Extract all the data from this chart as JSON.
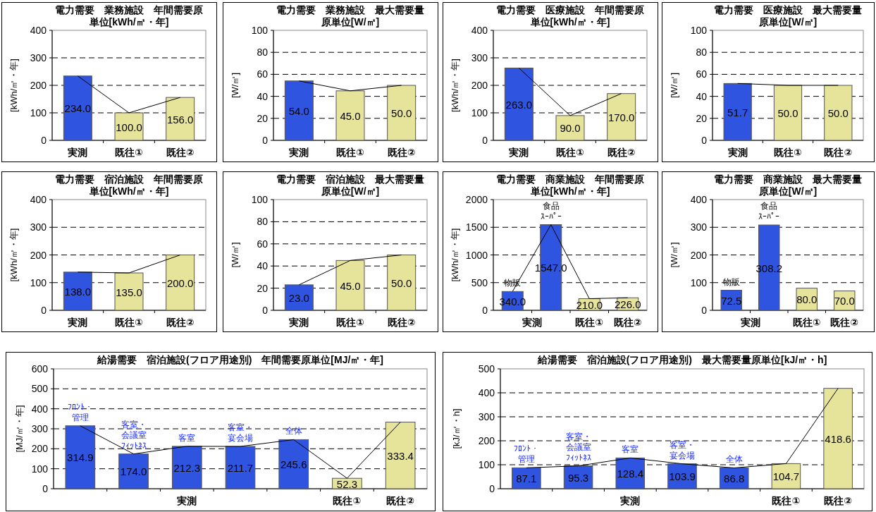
{
  "chart_data": [
    {
      "type": "bar",
      "title": "電力需要　業務施設　年間需要原単位[kWh/㎡・年]",
      "ylabel": "[kWh/㎡・年]",
      "categories": [
        "実測",
        "既往①",
        "既往②"
      ],
      "ylim": [
        0,
        400
      ],
      "yticks": [
        0,
        100,
        200,
        300,
        400
      ],
      "grid": "y",
      "series": [
        {
          "type": "bar",
          "colors": [
            "#2f55e0",
            "#e6e39a",
            "#e6e39a"
          ],
          "values": [
            234.0,
            100.0,
            156.0
          ],
          "value_labels": [
            "234.0",
            "100.0",
            "156.0"
          ]
        },
        {
          "type": "line",
          "color": "#000000",
          "values": [
            234.0,
            100.0,
            156.0
          ]
        }
      ]
    },
    {
      "type": "bar",
      "title": "電力需要　業務施設　最大需要量原単位[W/㎡]",
      "ylabel": "[W/㎡]",
      "categories": [
        "実測",
        "既往①",
        "既往②"
      ],
      "ylim": [
        0,
        100
      ],
      "yticks": [
        0,
        20,
        40,
        60,
        80,
        100
      ],
      "grid": "y",
      "series": [
        {
          "type": "bar",
          "colors": [
            "#2f55e0",
            "#e6e39a",
            "#e6e39a"
          ],
          "values": [
            54.0,
            45.0,
            50.0
          ],
          "value_labels": [
            "54.0",
            "45.0",
            "50.0"
          ]
        },
        {
          "type": "line",
          "color": "#000000",
          "values": [
            54.0,
            45.0,
            50.0
          ]
        }
      ]
    },
    {
      "type": "bar",
      "title": "電力需要　医療施設　年間需要原単位[kWh/㎡・年]",
      "ylabel": "[kWh/㎡・年]",
      "categories": [
        "実測",
        "既往①",
        "既往②"
      ],
      "ylim": [
        0,
        400
      ],
      "yticks": [
        0,
        100,
        200,
        300,
        400
      ],
      "grid": "y",
      "series": [
        {
          "type": "bar",
          "colors": [
            "#2f55e0",
            "#e6e39a",
            "#e6e39a"
          ],
          "values": [
            263.0,
            90.0,
            170.0
          ],
          "value_labels": [
            "263.0",
            "90.0",
            "170.0"
          ]
        },
        {
          "type": "line",
          "color": "#000000",
          "values": [
            263.0,
            90.0,
            170.0
          ]
        }
      ]
    },
    {
      "type": "bar",
      "title": "電力需要　医療施設　最大需要量原単位[W/㎡]",
      "ylabel": "[W/㎡]",
      "categories": [
        "実測",
        "既往①",
        "既往②"
      ],
      "ylim": [
        0,
        100
      ],
      "yticks": [
        0,
        20,
        40,
        60,
        80,
        100
      ],
      "grid": "y",
      "series": [
        {
          "type": "bar",
          "colors": [
            "#2f55e0",
            "#e6e39a",
            "#e6e39a"
          ],
          "values": [
            51.7,
            50.0,
            50.0
          ],
          "value_labels": [
            "51.7",
            "50.0",
            "50.0"
          ]
        },
        {
          "type": "line",
          "color": "#000000",
          "values": [
            51.7,
            50.0,
            50.0
          ]
        }
      ]
    },
    {
      "type": "bar",
      "title": "電力需要　宿泊施設　年間需要原単位[kWh/㎡・年]",
      "ylabel": "[kWh/㎡・年]",
      "categories": [
        "実測",
        "既往①",
        "既往②"
      ],
      "ylim": [
        0,
        400
      ],
      "yticks": [
        0,
        100,
        200,
        300,
        400
      ],
      "grid": "y",
      "series": [
        {
          "type": "bar",
          "colors": [
            "#2f55e0",
            "#e6e39a",
            "#e6e39a"
          ],
          "values": [
            138.0,
            135.0,
            200.0
          ],
          "value_labels": [
            "138.0",
            "135.0",
            "200.0"
          ]
        },
        {
          "type": "line",
          "color": "#000000",
          "values": [
            138.0,
            135.0,
            200.0
          ]
        }
      ]
    },
    {
      "type": "bar",
      "title": "電力需要　宿泊施設　最大需要量原単位[W/㎡]",
      "ylabel": "[W/㎡]",
      "categories": [
        "実測",
        "既往①",
        "既往②"
      ],
      "ylim": [
        0,
        100
      ],
      "yticks": [
        0,
        20,
        40,
        60,
        80,
        100
      ],
      "grid": "y",
      "series": [
        {
          "type": "bar",
          "colors": [
            "#2f55e0",
            "#e6e39a",
            "#e6e39a"
          ],
          "values": [
            23.0,
            45.0,
            50.0
          ],
          "value_labels": [
            "23.0",
            "45.0",
            "50.0"
          ]
        },
        {
          "type": "line",
          "color": "#000000",
          "values": [
            23.0,
            45.0,
            50.0
          ]
        }
      ]
    },
    {
      "type": "bar",
      "title": "電力需要　商業施設　年間需要原単位[kWh/㎡・年]",
      "ylabel": "[kWh/㎡・年]",
      "categories": [
        null,
        null,
        "既往①",
        "既往②"
      ],
      "ylim": [
        0,
        2000
      ],
      "yticks": [
        0,
        500,
        1000,
        1500,
        2000
      ],
      "grid": "y",
      "annotations": [
        {
          "text": "実測"
        },
        {
          "text": "物販",
          "y": 340.0
        },
        {
          "text": "食品ｽｰﾊﾟｰ",
          "y": 1547.0
        }
      ],
      "series": [
        {
          "type": "bar",
          "colors": [
            "#2f55e0",
            "#2f55e0",
            "#e6e39a",
            "#e6e39a"
          ],
          "values": [
            340.0,
            1547.0,
            210.0,
            226.0
          ],
          "value_labels": [
            "340.0",
            "1547.0",
            "210.0",
            "226.0"
          ]
        },
        {
          "type": "line",
          "color": "#000000",
          "values": [
            340.0,
            1547.0,
            210.0,
            226.0
          ]
        }
      ]
    },
    {
      "type": "bar",
      "title": "電力需要　商業施設　最大需要量原単位[W/㎡]",
      "ylabel": "[W/㎡]",
      "categories": [
        null,
        null,
        "既往①",
        "既往②"
      ],
      "ylim": [
        0,
        400
      ],
      "yticks": [
        0,
        100,
        200,
        300,
        400
      ],
      "grid": "y",
      "annotations": [
        {
          "text": "実測"
        },
        {
          "text": "物販",
          "y": 72.5
        },
        {
          "text": "食品ｽｰﾊﾟｰ",
          "y": 308.2
        }
      ],
      "series": [
        {
          "type": "bar",
          "colors": [
            "#2f55e0",
            "#2f55e0",
            "#e6e39a",
            "#e6e39a"
          ],
          "values": [
            72.5,
            308.2,
            80.0,
            70.0
          ],
          "value_labels": [
            "72.5",
            "308.2",
            "80.0",
            "70.0"
          ]
        }
      ]
    },
    {
      "type": "bar",
      "title": "給湯需要　宿泊施設(フロア用途別)　年間需要原単位[MJ/㎡・年]",
      "ylabel": "[MJ/㎡・年]",
      "categories": [
        null,
        null,
        null,
        null,
        null,
        "既往①",
        "既往②"
      ],
      "ylim": [
        0,
        600
      ],
      "yticks": [
        0,
        100,
        200,
        300,
        400,
        500,
        600
      ],
      "grid": "y",
      "annotations": [
        {
          "text": "実測"
        },
        {
          "text": "ﾌﾛﾝﾄ・管理",
          "y": 314.9
        },
        {
          "text": "客室・会議室ﾌｨｯﾄﾈｽ",
          "y": 174.0
        },
        {
          "text": "客室",
          "y": 212.3
        },
        {
          "text": "客室・宴会場",
          "y": 211.7
        },
        {
          "text": "全体",
          "y": 245.6
        }
      ],
      "series": [
        {
          "type": "bar",
          "colors": [
            "#2f55e0",
            "#2f55e0",
            "#2f55e0",
            "#2f55e0",
            "#2f55e0",
            "#e6e39a",
            "#e6e39a"
          ],
          "values": [
            314.9,
            174.0,
            212.3,
            211.7,
            245.6,
            52.3,
            333.4
          ],
          "value_labels": [
            "314.9",
            "174.0",
            "212.3",
            "211.7",
            "245.6",
            "52.3",
            "333.4"
          ]
        },
        {
          "type": "line",
          "color": "#000000",
          "values": [
            314.9,
            174.0,
            212.3,
            211.7,
            245.6,
            52.3,
            333.4
          ]
        }
      ]
    },
    {
      "type": "bar",
      "title": "給湯需要　宿泊施設(フロア用途別)　最大需要量原単位[kJ/㎡・h]",
      "ylabel": "[kJ/㎡・h]",
      "categories": [
        null,
        null,
        null,
        null,
        null,
        "既往①",
        "既往②"
      ],
      "ylim": [
        0,
        500
      ],
      "yticks": [
        0,
        100,
        200,
        300,
        400,
        500
      ],
      "grid": "y",
      "annotations": [
        {
          "text": "実測"
        },
        {
          "text": "ﾌﾛﾝﾄ・管理",
          "y": 87.1
        },
        {
          "text": "客室・会議室ﾌｨｯﾄﾈｽ",
          "y": 95.3
        },
        {
          "text": "客室",
          "y": 128.4
        },
        {
          "text": "客室・宴会場",
          "y": 103.9
        },
        {
          "text": "全体",
          "y": 86.8
        }
      ],
      "series": [
        {
          "type": "bar",
          "colors": [
            "#2f55e0",
            "#2f55e0",
            "#2f55e0",
            "#2f55e0",
            "#2f55e0",
            "#e6e39a",
            "#e6e39a"
          ],
          "values": [
            87.1,
            95.3,
            128.4,
            103.9,
            86.8,
            104.7,
            418.6
          ],
          "value_labels": [
            "87.1",
            "95.3",
            "128.4",
            "103.9",
            "86.8",
            "104.7",
            "418.6"
          ]
        },
        {
          "type": "line",
          "color": "#000000",
          "values": [
            87.1,
            95.3,
            128.4,
            103.9,
            86.8,
            104.7,
            418.6
          ]
        }
      ]
    }
  ]
}
